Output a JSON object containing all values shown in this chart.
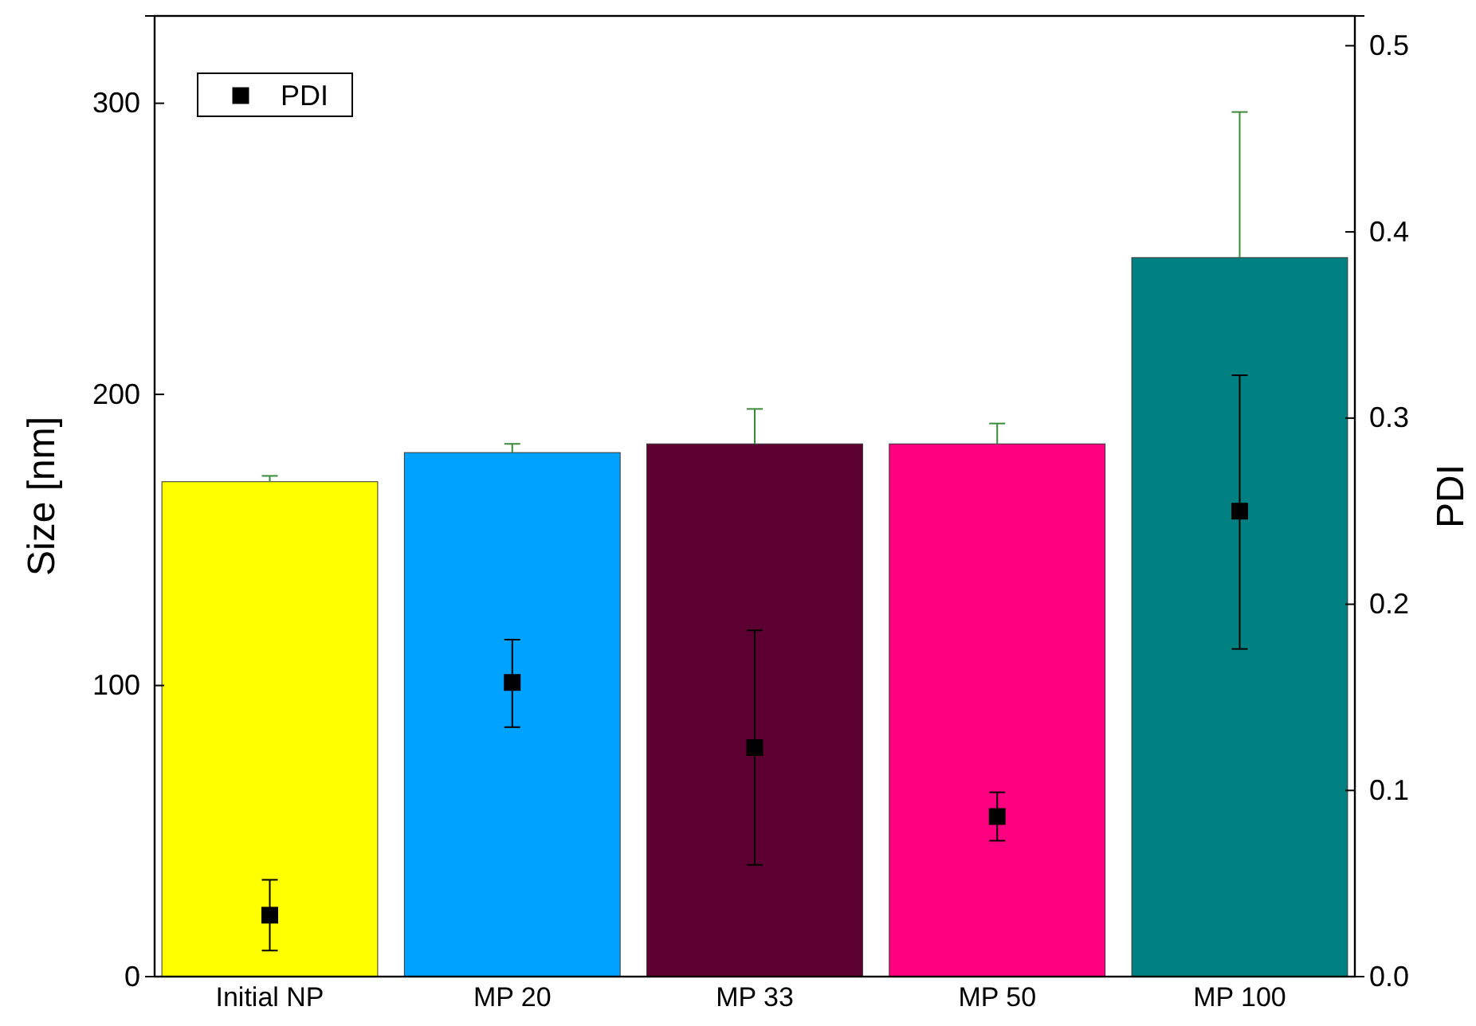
{
  "chart_data": {
    "type": "bar",
    "categories": [
      "Initial NP",
      "MP 20",
      "MP 33",
      "MP 50",
      "MP 100"
    ],
    "ylabel": "Size [nm]",
    "y2label": "PDI",
    "ylim": [
      0,
      330
    ],
    "yticks": [
      0,
      100,
      200,
      300
    ],
    "y2lim": [
      0,
      0.516
    ],
    "y2ticks": [
      {
        "value": 0,
        "label": "0.0"
      },
      {
        "value": 0.1,
        "label": "0.1"
      },
      {
        "value": 0.2,
        "label": "0.2"
      },
      {
        "value": 0.3,
        "label": "0.3"
      },
      {
        "value": 0.4,
        "label": "0.4"
      },
      {
        "value": 0.5,
        "label": "0.5"
      }
    ],
    "grid": false,
    "legend": "top left",
    "marker": "square",
    "series": [
      {
        "colors": [
          "#ffff00",
          "#00a2ff",
          "#5c0031",
          "#ff0080",
          "#008080"
        ],
        "values": [
          170,
          180,
          183,
          183,
          247
        ],
        "errors": [
          [
            170,
            172
          ],
          [
            180,
            183
          ],
          [
            183,
            195
          ],
          [
            183,
            190
          ],
          [
            247,
            297
          ]
        ]
      },
      {
        "type": "scatter",
        "name": "PDI",
        "axis": "y2",
        "color": "#000000",
        "x": [
          "Initial NP",
          "MP 20",
          "MP 33",
          "MP 50",
          "MP 100"
        ],
        "values": [
          0.033,
          0.158,
          0.123,
          0.086,
          0.25
        ],
        "errors": [
          [
            0.014,
            0.052
          ],
          [
            0.134,
            0.181
          ],
          [
            0.06,
            0.186
          ],
          [
            0.073,
            0.099
          ],
          [
            0.176,
            0.323
          ]
        ]
      }
    ]
  }
}
